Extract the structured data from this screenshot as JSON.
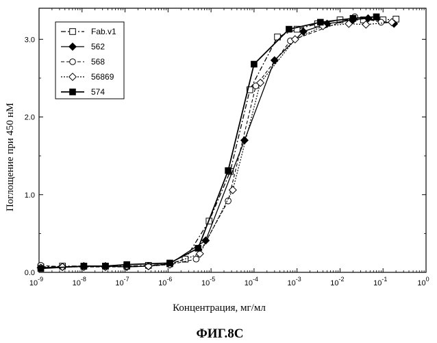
{
  "chart_data": {
    "type": "line",
    "caption": "ФИГ.8С",
    "xlabel": "Концентрация, мг/мл",
    "ylabel": "Поглощение при 450 нМ",
    "x_scale": "log",
    "xlim": [
      1e-09,
      1
    ],
    "ylim": [
      0,
      3.4
    ],
    "x_ticks": [
      1e-09,
      1e-08,
      1e-07,
      1e-06,
      1e-05,
      0.0001,
      0.001,
      0.01,
      0.1,
      1
    ],
    "x_tick_labels": [
      {
        "base": "10",
        "exp": "-9"
      },
      {
        "base": "10",
        "exp": "-8"
      },
      {
        "base": "10",
        "exp": "-7"
      },
      {
        "base": "10",
        "exp": "-6"
      },
      {
        "base": "10",
        "exp": "-5"
      },
      {
        "base": "10",
        "exp": "-4"
      },
      {
        "base": "10",
        "exp": "-3"
      },
      {
        "base": "10",
        "exp": "-2"
      },
      {
        "base": "10",
        "exp": "-1"
      },
      {
        "base": "10",
        "exp": "0"
      }
    ],
    "y_ticks": [
      0.0,
      1.0,
      2.0,
      3.0
    ],
    "y_tick_labels": [
      "0.0",
      "1.0",
      "2.0",
      "3.0"
    ],
    "grid": false,
    "legend_position": "top-left",
    "series": [
      {
        "name": "Fab.v1",
        "marker": "square-open",
        "line": "dash-dot",
        "points": [
          [
            1.1e-09,
            0.07
          ],
          [
            3.5e-09,
            0.08
          ],
          [
            1.1e-08,
            0.08
          ],
          [
            3.5e-08,
            0.08
          ],
          [
            1.1e-07,
            0.08
          ],
          [
            3.5e-07,
            0.09
          ],
          [
            1.1e-06,
            0.11
          ],
          [
            2.5e-06,
            0.17
          ],
          [
            9e-06,
            0.66
          ],
          [
            2.8e-05,
            1.3
          ],
          [
            8e-05,
            2.35
          ],
          [
            0.00035,
            3.03
          ],
          [
            0.001,
            3.13
          ],
          [
            0.003,
            3.2
          ],
          [
            0.01,
            3.25
          ],
          [
            0.035,
            3.25
          ],
          [
            0.1,
            3.25
          ],
          [
            0.2,
            3.26
          ]
        ]
      },
      {
        "name": "562",
        "marker": "diamond-filled",
        "line": "solid",
        "points": [
          [
            1.1e-09,
            0.06
          ],
          [
            3.5e-09,
            0.07
          ],
          [
            1.1e-08,
            0.08
          ],
          [
            3.5e-08,
            0.08
          ],
          [
            1.1e-07,
            0.07
          ],
          [
            3.5e-07,
            0.08
          ],
          [
            1.1e-06,
            0.11
          ],
          [
            7.5e-06,
            0.41
          ],
          [
            6e-05,
            1.7
          ],
          [
            0.0003,
            2.73
          ],
          [
            0.0014,
            3.1
          ],
          [
            0.005,
            3.2
          ],
          [
            0.02,
            3.25
          ],
          [
            0.045,
            3.27
          ],
          [
            0.18,
            3.2
          ]
        ]
      },
      {
        "name": "568",
        "marker": "circle-open",
        "line": "dash",
        "points": [
          [
            1.1e-09,
            0.09
          ],
          [
            3.5e-09,
            0.07
          ],
          [
            1.1e-08,
            0.07
          ],
          [
            3.5e-08,
            0.07
          ],
          [
            1.1e-07,
            0.07
          ],
          [
            3.5e-07,
            0.08
          ],
          [
            1.1e-06,
            0.1
          ],
          [
            4.5e-06,
            0.17
          ],
          [
            2.5e-05,
            0.92
          ],
          [
            0.00011,
            2.4
          ],
          [
            0.0007,
            2.98
          ],
          [
            0.022,
            3.29
          ],
          [
            0.09,
            3.22
          ]
        ]
      },
      {
        "name": "56869",
        "marker": "diamond-open",
        "line": "dot",
        "points": [
          [
            1.1e-09,
            0.06
          ],
          [
            3.5e-09,
            0.07
          ],
          [
            1.1e-08,
            0.07
          ],
          [
            3.5e-08,
            0.07
          ],
          [
            1.1e-07,
            0.08
          ],
          [
            3.5e-07,
            0.08
          ],
          [
            1.1e-06,
            0.1
          ],
          [
            5.5e-06,
            0.24
          ],
          [
            3.2e-05,
            1.06
          ],
          [
            0.00014,
            2.44
          ],
          [
            0.0009,
            3.0
          ],
          [
            0.004,
            3.17
          ],
          [
            0.016,
            3.2
          ],
          [
            0.04,
            3.19
          ],
          [
            0.16,
            3.22
          ]
        ]
      },
      {
        "name": "574",
        "marker": "square-filled",
        "line": "solid-thick",
        "points": [
          [
            1.1e-09,
            0.05
          ],
          [
            1.1e-08,
            0.08
          ],
          [
            3.5e-08,
            0.08
          ],
          [
            1.1e-07,
            0.1
          ],
          [
            1.1e-06,
            0.12
          ],
          [
            5e-06,
            0.31
          ],
          [
            2.5e-05,
            1.31
          ],
          [
            0.0001,
            2.68
          ],
          [
            0.00065,
            3.13
          ],
          [
            0.0035,
            3.22
          ],
          [
            0.02,
            3.27
          ],
          [
            0.07,
            3.29
          ]
        ]
      }
    ]
  }
}
